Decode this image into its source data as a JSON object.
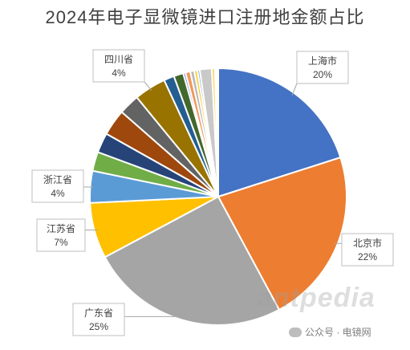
{
  "chart_data": {
    "type": "pie",
    "title": "2024年电子显微镜进口注册地金额占比",
    "slices": [
      {
        "label": "上海市",
        "value": 20,
        "pct_text": "20%",
        "color": "#4472C4",
        "labeled": true
      },
      {
        "label": "北京市",
        "value": 22,
        "pct_text": "22%",
        "color": "#ED7D31",
        "labeled": true
      },
      {
        "label": "广东省",
        "value": 25,
        "pct_text": "25%",
        "color": "#A5A5A5",
        "labeled": true
      },
      {
        "label": "江苏省",
        "value": 7,
        "pct_text": "7%",
        "color": "#FFC000",
        "labeled": true
      },
      {
        "label": "浙江省",
        "value": 4,
        "pct_text": "4%",
        "color": "#5B9BD5",
        "labeled": true
      },
      {
        "label": "",
        "value": 2.4,
        "color": "#70AD47",
        "labeled": false
      },
      {
        "label": "",
        "value": 2.5,
        "color": "#264478",
        "labeled": false
      },
      {
        "label": "",
        "value": 3.3,
        "color": "#9E480E",
        "labeled": false
      },
      {
        "label": "",
        "value": 2.6,
        "color": "#636363",
        "labeled": false
      },
      {
        "label": "四川省",
        "value": 4,
        "pct_text": "4%",
        "color": "#997300",
        "labeled": true
      },
      {
        "label": "",
        "value": 1.3,
        "color": "#255E91",
        "labeled": false
      },
      {
        "label": "",
        "value": 1.2,
        "color": "#43682B",
        "labeled": false
      },
      {
        "label": "",
        "value": 0.3,
        "color": "#698ED0",
        "labeled": false
      },
      {
        "label": "",
        "value": 0.6,
        "color": "#F1975A",
        "labeled": false
      },
      {
        "label": "",
        "value": 0.5,
        "color": "#B7B7B7",
        "labeled": false
      },
      {
        "label": "",
        "value": 0.4,
        "color": "#FFCD33",
        "labeled": false
      },
      {
        "label": "",
        "value": 0.3,
        "color": "#7CAFDD",
        "labeled": false
      },
      {
        "label": "",
        "value": 1.5,
        "color": "#C9C9C9",
        "labeled": false
      },
      {
        "label": "",
        "value": 0.4,
        "color": "#FFD966",
        "labeled": false
      },
      {
        "label": "",
        "value": 0.4,
        "color": "#ffffff",
        "labeled": false
      }
    ]
  },
  "watermark": "antpedia",
  "source": "公众号 · 电镜网"
}
